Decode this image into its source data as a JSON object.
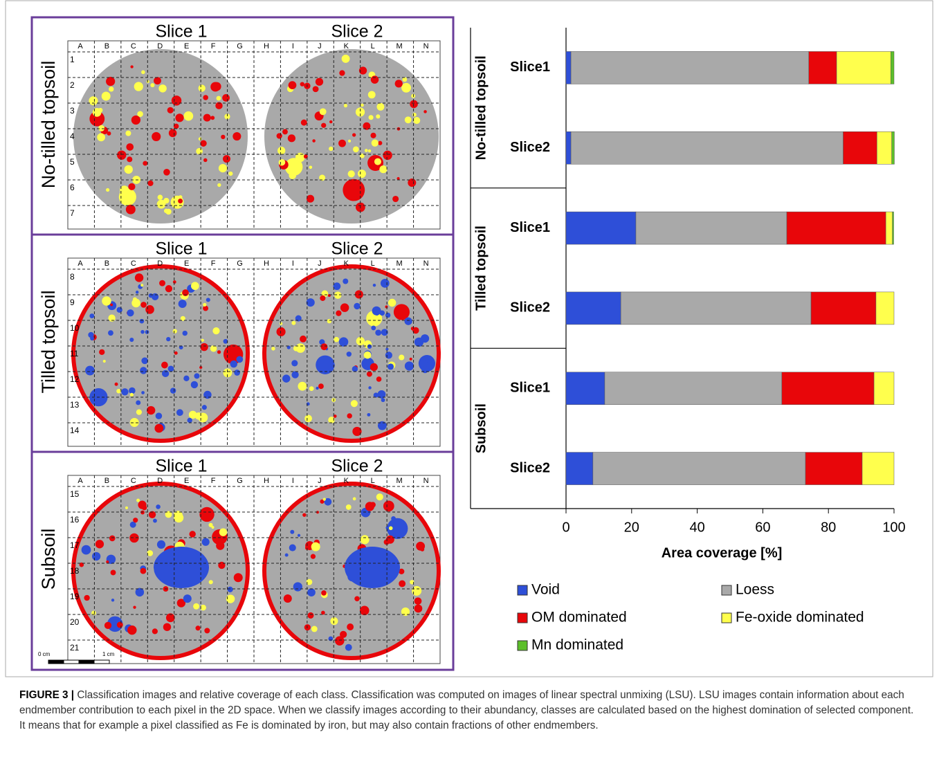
{
  "figure": {
    "columns": [
      "A",
      "B",
      "C",
      "D",
      "E",
      "F",
      "G",
      "H",
      "I",
      "J",
      "K",
      "L",
      "M",
      "N"
    ],
    "panels": [
      {
        "label": "No-tilled topsoil",
        "slices": [
          "Slice 1",
          "Slice 2"
        ],
        "rows": [
          1,
          2,
          3,
          4,
          5,
          6,
          7
        ]
      },
      {
        "label": "Tilled topsoil",
        "slices": [
          "Slice 1",
          "Slice 2"
        ],
        "rows": [
          8,
          9,
          10,
          11,
          12,
          13,
          14
        ]
      },
      {
        "label": "Subsoil",
        "slices": [
          "Slice 1",
          "Slice 2"
        ],
        "rows": [
          15,
          16,
          17,
          18,
          19,
          20,
          21
        ]
      }
    ],
    "scale": [
      "0 cm",
      "1 cm"
    ]
  },
  "chart_data": {
    "type": "bar",
    "orientation": "horizontal",
    "stacked": true,
    "groups": [
      "No-tilled topsoil",
      "Tilled topsoil",
      "Subsoil"
    ],
    "categories": [
      "Slice1",
      "Slice2",
      "Slice1",
      "Slice2",
      "Slice1",
      "Slice2"
    ],
    "series": [
      {
        "name": "Void",
        "color": "#2e4fd8",
        "values": [
          1.5,
          1.5,
          21.3,
          16.7,
          11.8,
          8.2
        ]
      },
      {
        "name": "Loess",
        "color": "#a9a9a9",
        "values": [
          72.5,
          83,
          46,
          58,
          54,
          64.8
        ]
      },
      {
        "name": "OM dominated",
        "color": "#e8060a",
        "values": [
          8.5,
          10.3,
          30.2,
          19.8,
          28.1,
          17.3
        ]
      },
      {
        "name": "Fe-oxide dominated",
        "color": "#ffff4d",
        "values": [
          16.5,
          4.5,
          2,
          5.5,
          6.1,
          9.7
        ]
      },
      {
        "name": "Mn dominated",
        "color": "#5cbf2a",
        "values": [
          1,
          0.8,
          0.4,
          0,
          0,
          0
        ]
      }
    ],
    "xlim": [
      0,
      100
    ],
    "xticks": [
      0,
      20,
      40,
      60,
      80,
      100
    ],
    "xlabel": "Area coverage [%]"
  },
  "caption": {
    "label": "FIGURE 3 |",
    "text": "Classification images and relative coverage of each class. Classification was computed on images of linear spectral unmixing (LSU). LSU images contain information about each endmember contribution to each pixel in the 2D space. When we classify images according to their abundancy, classes are calculated based on the highest domination of selected component. It means that for example a pixel classified as Fe is dominated by iron, but may also contain fractions of other endmembers."
  }
}
